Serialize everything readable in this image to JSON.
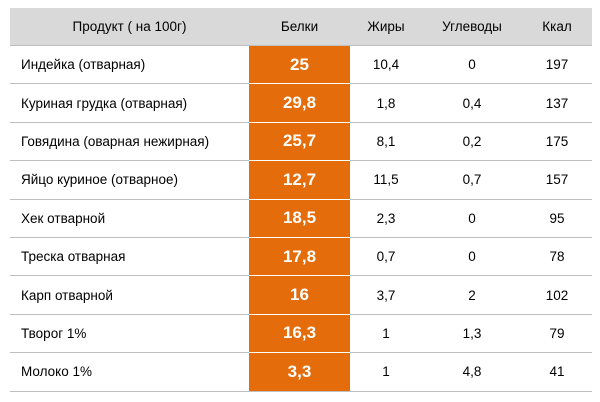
{
  "table": {
    "headers": [
      "Продукт ( на 100г)",
      "Белки",
      "Жиры",
      "Углеводы",
      "Ккал"
    ],
    "rows": [
      {
        "name": "Индейка (отварная)",
        "protein": "25",
        "fat": "10,4",
        "carbs": "0",
        "kcal": "197"
      },
      {
        "name": "Куриная грудка (отварная)",
        "protein": "29,8",
        "fat": "1,8",
        "carbs": "0,4",
        "kcal": "137"
      },
      {
        "name": "Говядина (оварная нежирная)",
        "protein": "25,7",
        "fat": "8,1",
        "carbs": "0,2",
        "kcal": "175"
      },
      {
        "name": "Яйцо куриное (отварное)",
        "protein": "12,7",
        "fat": "11,5",
        "carbs": "0,7",
        "kcal": "157"
      },
      {
        "name": "Хек отварной",
        "protein": "18,5",
        "fat": "2,3",
        "carbs": "0",
        "kcal": "95"
      },
      {
        "name": "Треска отварная",
        "protein": "17,8",
        "fat": "0,7",
        "carbs": "0",
        "kcal": "78"
      },
      {
        "name": "Карп отварной",
        "protein": "16",
        "fat": "3,7",
        "carbs": "2",
        "kcal": "102"
      },
      {
        "name": "Творог 1%",
        "protein": "16,3",
        "fat": "1",
        "carbs": "1,3",
        "kcal": "79"
      },
      {
        "name": "Молоко 1%",
        "protein": "3,3",
        "fat": "1",
        "carbs": "4,8",
        "kcal": "41"
      }
    ]
  },
  "colors": {
    "header_bg": "#d9d9d9",
    "protein_highlight": "#e46c0a",
    "protein_text": "#ffffff"
  }
}
